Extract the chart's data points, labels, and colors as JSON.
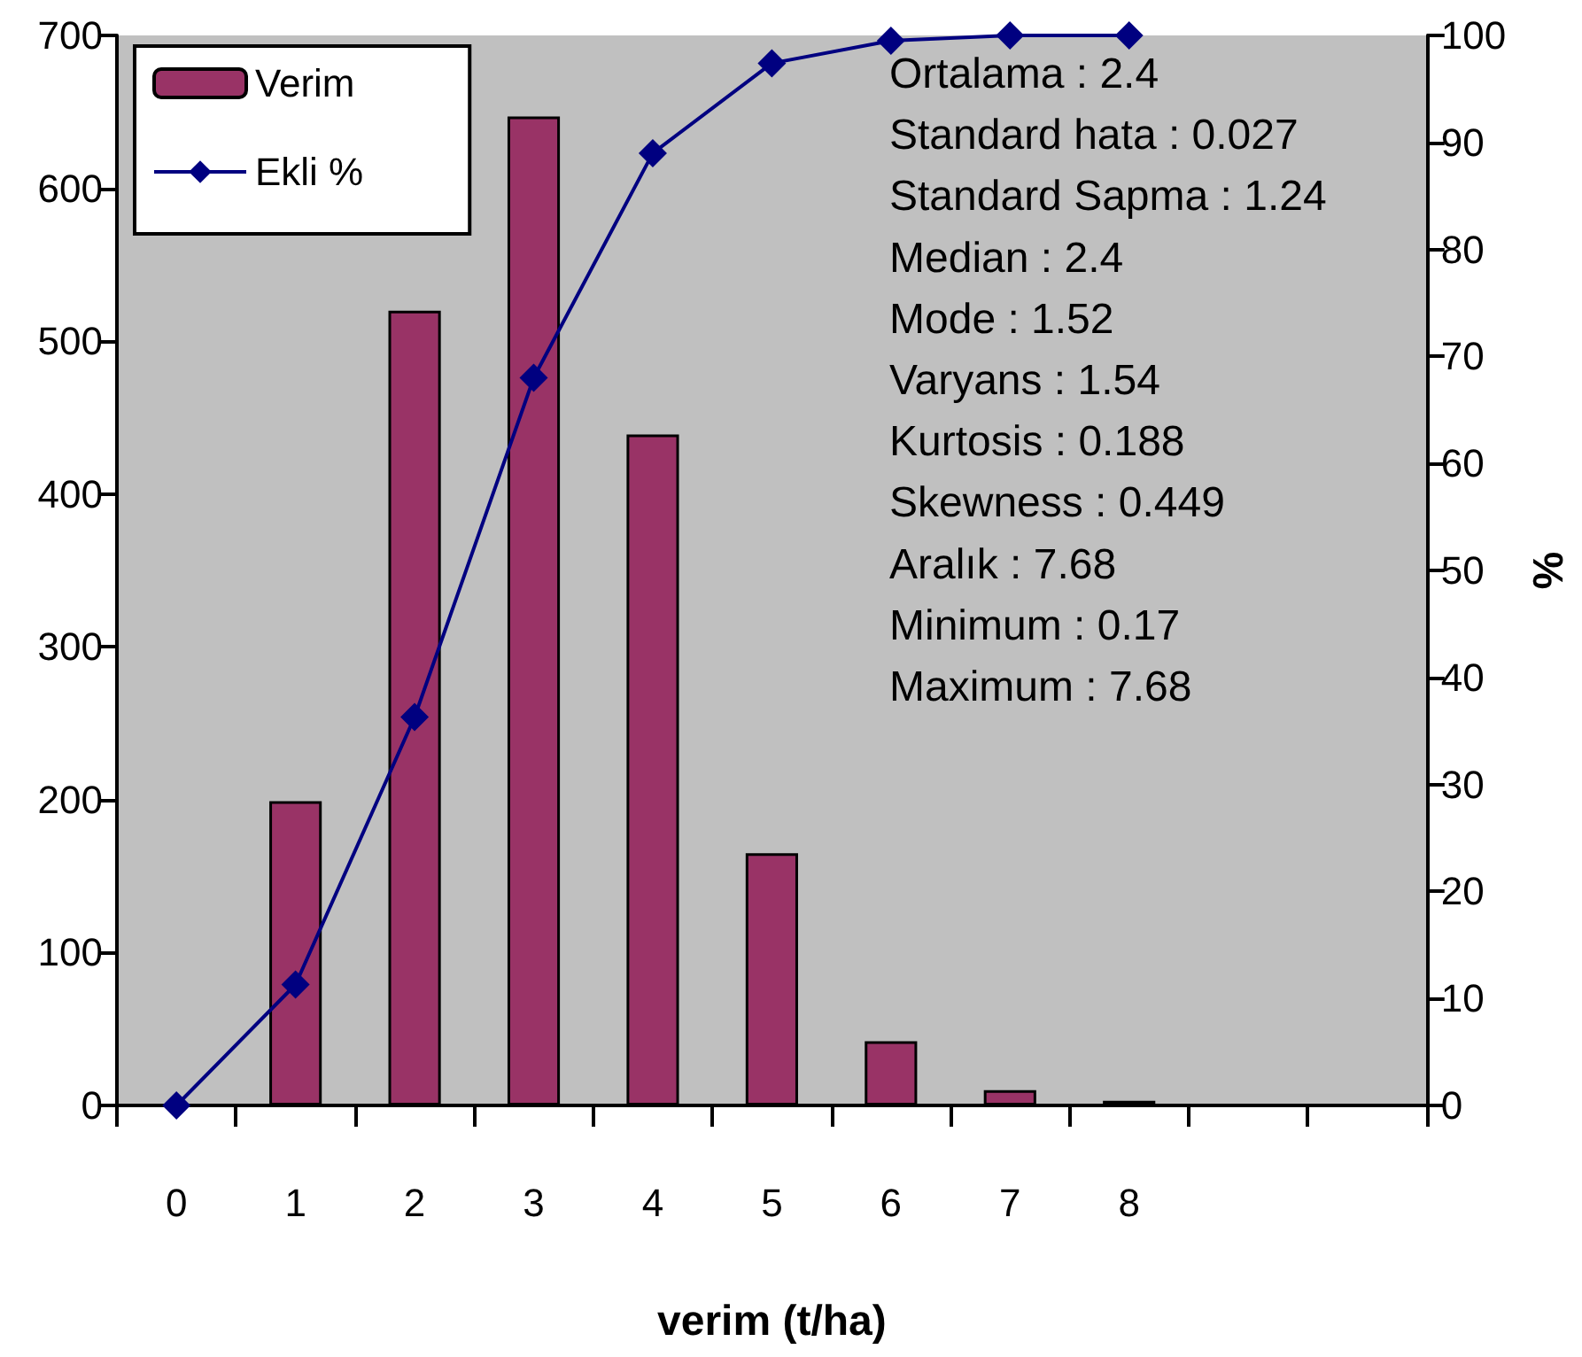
{
  "chart_data": {
    "type": "bar",
    "xlabel": "verim (t/ha)",
    "y2label": "%",
    "categories": [
      "0",
      "1",
      "2",
      "3",
      "4",
      "5",
      "6",
      "7",
      "8",
      null,
      null
    ],
    "series": [
      {
        "name": "Verim",
        "color": "#993366",
        "values": [
          null,
          199,
          520,
          647,
          439,
          165,
          42,
          10,
          3,
          null,
          null
        ]
      },
      {
        "name": "Ekli %",
        "type": "line",
        "axis": "y2",
        "color": "#000080",
        "marker": "diamond",
        "values": [
          0,
          11.3,
          36.3,
          68,
          89,
          97.4,
          99.5,
          100,
          100,
          null,
          null
        ]
      }
    ],
    "ylim": [
      0,
      700
    ],
    "yticks": [
      0,
      100,
      200,
      300,
      400,
      500,
      600,
      700
    ],
    "y2lim": [
      0,
      100
    ],
    "y2ticks": [
      0,
      10,
      20,
      30,
      40,
      50,
      60,
      70,
      80,
      90,
      100
    ],
    "legend": "top left",
    "grid": false,
    "annotations": [
      "Ortalama : 2.4",
      "Standard hata : 0.027",
      "Standard Sapma : 1.24",
      "Median : 2.4",
      "Mode : 1.52",
      "Varyans : 1.54",
      "Kurtosis : 0.188",
      "Skewness : 0.449",
      "Aralık : 7.68",
      "Minimum : 0.17",
      "Maximum : 7.68"
    ]
  }
}
